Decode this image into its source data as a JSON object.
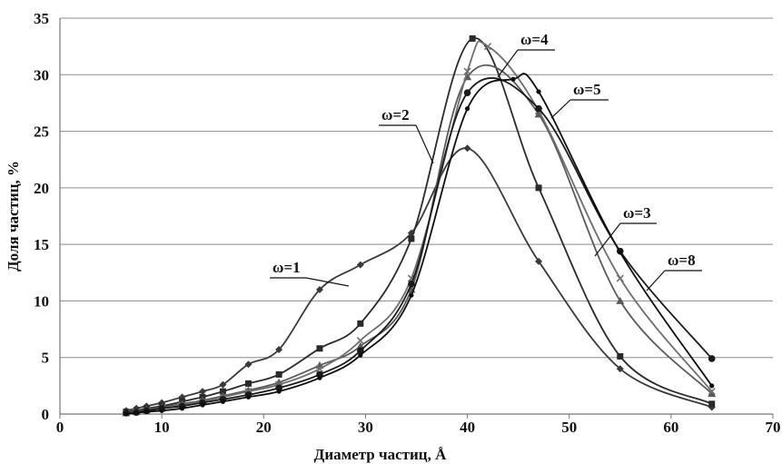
{
  "chart_data": {
    "type": "line",
    "xlabel": "Диаметр частиц, Å",
    "ylabel": "Доля частиц, %",
    "xlim": [
      0,
      70
    ],
    "ylim": [
      0,
      35
    ],
    "xticks": [
      "0",
      "10",
      "20",
      "30",
      "40",
      "50",
      "60",
      "70"
    ],
    "yticks": [
      "0",
      "5",
      "10",
      "15",
      "20",
      "25",
      "30",
      "35"
    ],
    "grid": "horizontal",
    "legend": "none",
    "series": [
      {
        "name": "ω=1",
        "marker": "diamond",
        "color": "#3a3a3a",
        "points": [
          [
            6.5,
            0.3
          ],
          [
            7.5,
            0.5
          ],
          [
            8.5,
            0.7
          ],
          [
            10,
            1.0
          ],
          [
            12,
            1.5
          ],
          [
            14,
            2.0
          ],
          [
            16,
            2.6
          ],
          [
            18.5,
            4.4
          ],
          [
            21.5,
            5.7
          ],
          [
            25.5,
            11.0
          ],
          [
            29.5,
            13.2
          ],
          [
            34.5,
            16.0
          ],
          [
            40,
            23.5
          ],
          [
            47,
            13.5
          ],
          [
            55,
            4.0
          ],
          [
            64,
            0.6
          ]
        ]
      },
      {
        "name": "ω=2",
        "marker": "square",
        "color": "#2a2a2a",
        "points": [
          [
            6.5,
            0.2
          ],
          [
            7.5,
            0.3
          ],
          [
            8.5,
            0.5
          ],
          [
            10,
            0.7
          ],
          [
            12,
            1.1
          ],
          [
            14,
            1.5
          ],
          [
            16,
            2.0
          ],
          [
            18.5,
            2.7
          ],
          [
            21.5,
            3.5
          ],
          [
            25.5,
            5.8
          ],
          [
            29.5,
            8.0
          ],
          [
            34.5,
            15.5
          ],
          [
            40.5,
            33.2
          ],
          [
            47,
            20.0
          ],
          [
            55,
            5.1
          ],
          [
            64,
            0.9
          ]
        ]
      },
      {
        "name": "ω=3",
        "marker": "triangle",
        "color": "#5a5a5a",
        "points": [
          [
            6.5,
            0.1
          ],
          [
            7.5,
            0.2
          ],
          [
            8.5,
            0.4
          ],
          [
            10,
            0.6
          ],
          [
            12,
            0.9
          ],
          [
            14,
            1.2
          ],
          [
            16,
            1.6
          ],
          [
            18.5,
            2.1
          ],
          [
            21.5,
            2.8
          ],
          [
            25.5,
            4.3
          ],
          [
            29.5,
            6.0
          ],
          [
            34.5,
            11.0
          ],
          [
            40,
            29.8
          ],
          [
            47,
            26.5
          ],
          [
            55,
            10.0
          ],
          [
            64,
            1.8
          ]
        ]
      },
      {
        "name": "ω=4",
        "marker": "x",
        "color": "#6e6e6e",
        "points": [
          [
            6.5,
            0.1
          ],
          [
            7.5,
            0.2
          ],
          [
            8.5,
            0.3
          ],
          [
            10,
            0.5
          ],
          [
            12,
            0.8
          ],
          [
            14,
            1.1
          ],
          [
            16,
            1.5
          ],
          [
            18.5,
            2.0
          ],
          [
            21.5,
            2.6
          ],
          [
            25.5,
            4.0
          ],
          [
            29.5,
            6.5
          ],
          [
            34.5,
            12.0
          ],
          [
            40,
            30.3
          ],
          [
            42,
            32.5
          ],
          [
            47,
            26.8
          ],
          [
            55,
            12.0
          ],
          [
            64,
            2.0
          ]
        ]
      },
      {
        "name": "ω=5",
        "marker": "circle",
        "color": "#1a1a1a",
        "points": [
          [
            6.5,
            0.1
          ],
          [
            7.5,
            0.15
          ],
          [
            8.5,
            0.3
          ],
          [
            10,
            0.5
          ],
          [
            12,
            0.7
          ],
          [
            14,
            1.0
          ],
          [
            16,
            1.3
          ],
          [
            18.5,
            1.7
          ],
          [
            21.5,
            2.3
          ],
          [
            25.5,
            3.5
          ],
          [
            29.5,
            5.6
          ],
          [
            34.5,
            11.5
          ],
          [
            40,
            28.4
          ],
          [
            47,
            27.0
          ],
          [
            55,
            14.4
          ],
          [
            64,
            4.9
          ]
        ]
      },
      {
        "name": "ω=8",
        "marker": "dot",
        "color": "#0e0e0e",
        "points": [
          [
            6.5,
            0.0
          ],
          [
            7.5,
            0.1
          ],
          [
            8.5,
            0.2
          ],
          [
            10,
            0.3
          ],
          [
            12,
            0.5
          ],
          [
            14,
            0.8
          ],
          [
            16,
            1.1
          ],
          [
            18.5,
            1.5
          ],
          [
            21.5,
            2.0
          ],
          [
            25.5,
            3.2
          ],
          [
            29.5,
            5.2
          ],
          [
            34.5,
            10.5
          ],
          [
            40,
            27.0
          ],
          [
            44.5,
            29.6
          ],
          [
            47,
            28.5
          ],
          [
            55,
            14.3
          ],
          [
            64,
            2.5
          ]
        ]
      }
    ],
    "annotations": [
      {
        "text": "ω=1",
        "series": "ω=1"
      },
      {
        "text": "ω=2",
        "series": "ω=2"
      },
      {
        "text": "ω=4",
        "series": "ω=4"
      },
      {
        "text": "ω=5",
        "series": "ω=5"
      },
      {
        "text": "ω=3",
        "series": "ω=3"
      },
      {
        "text": "ω=8",
        "series": "ω=8"
      }
    ]
  }
}
